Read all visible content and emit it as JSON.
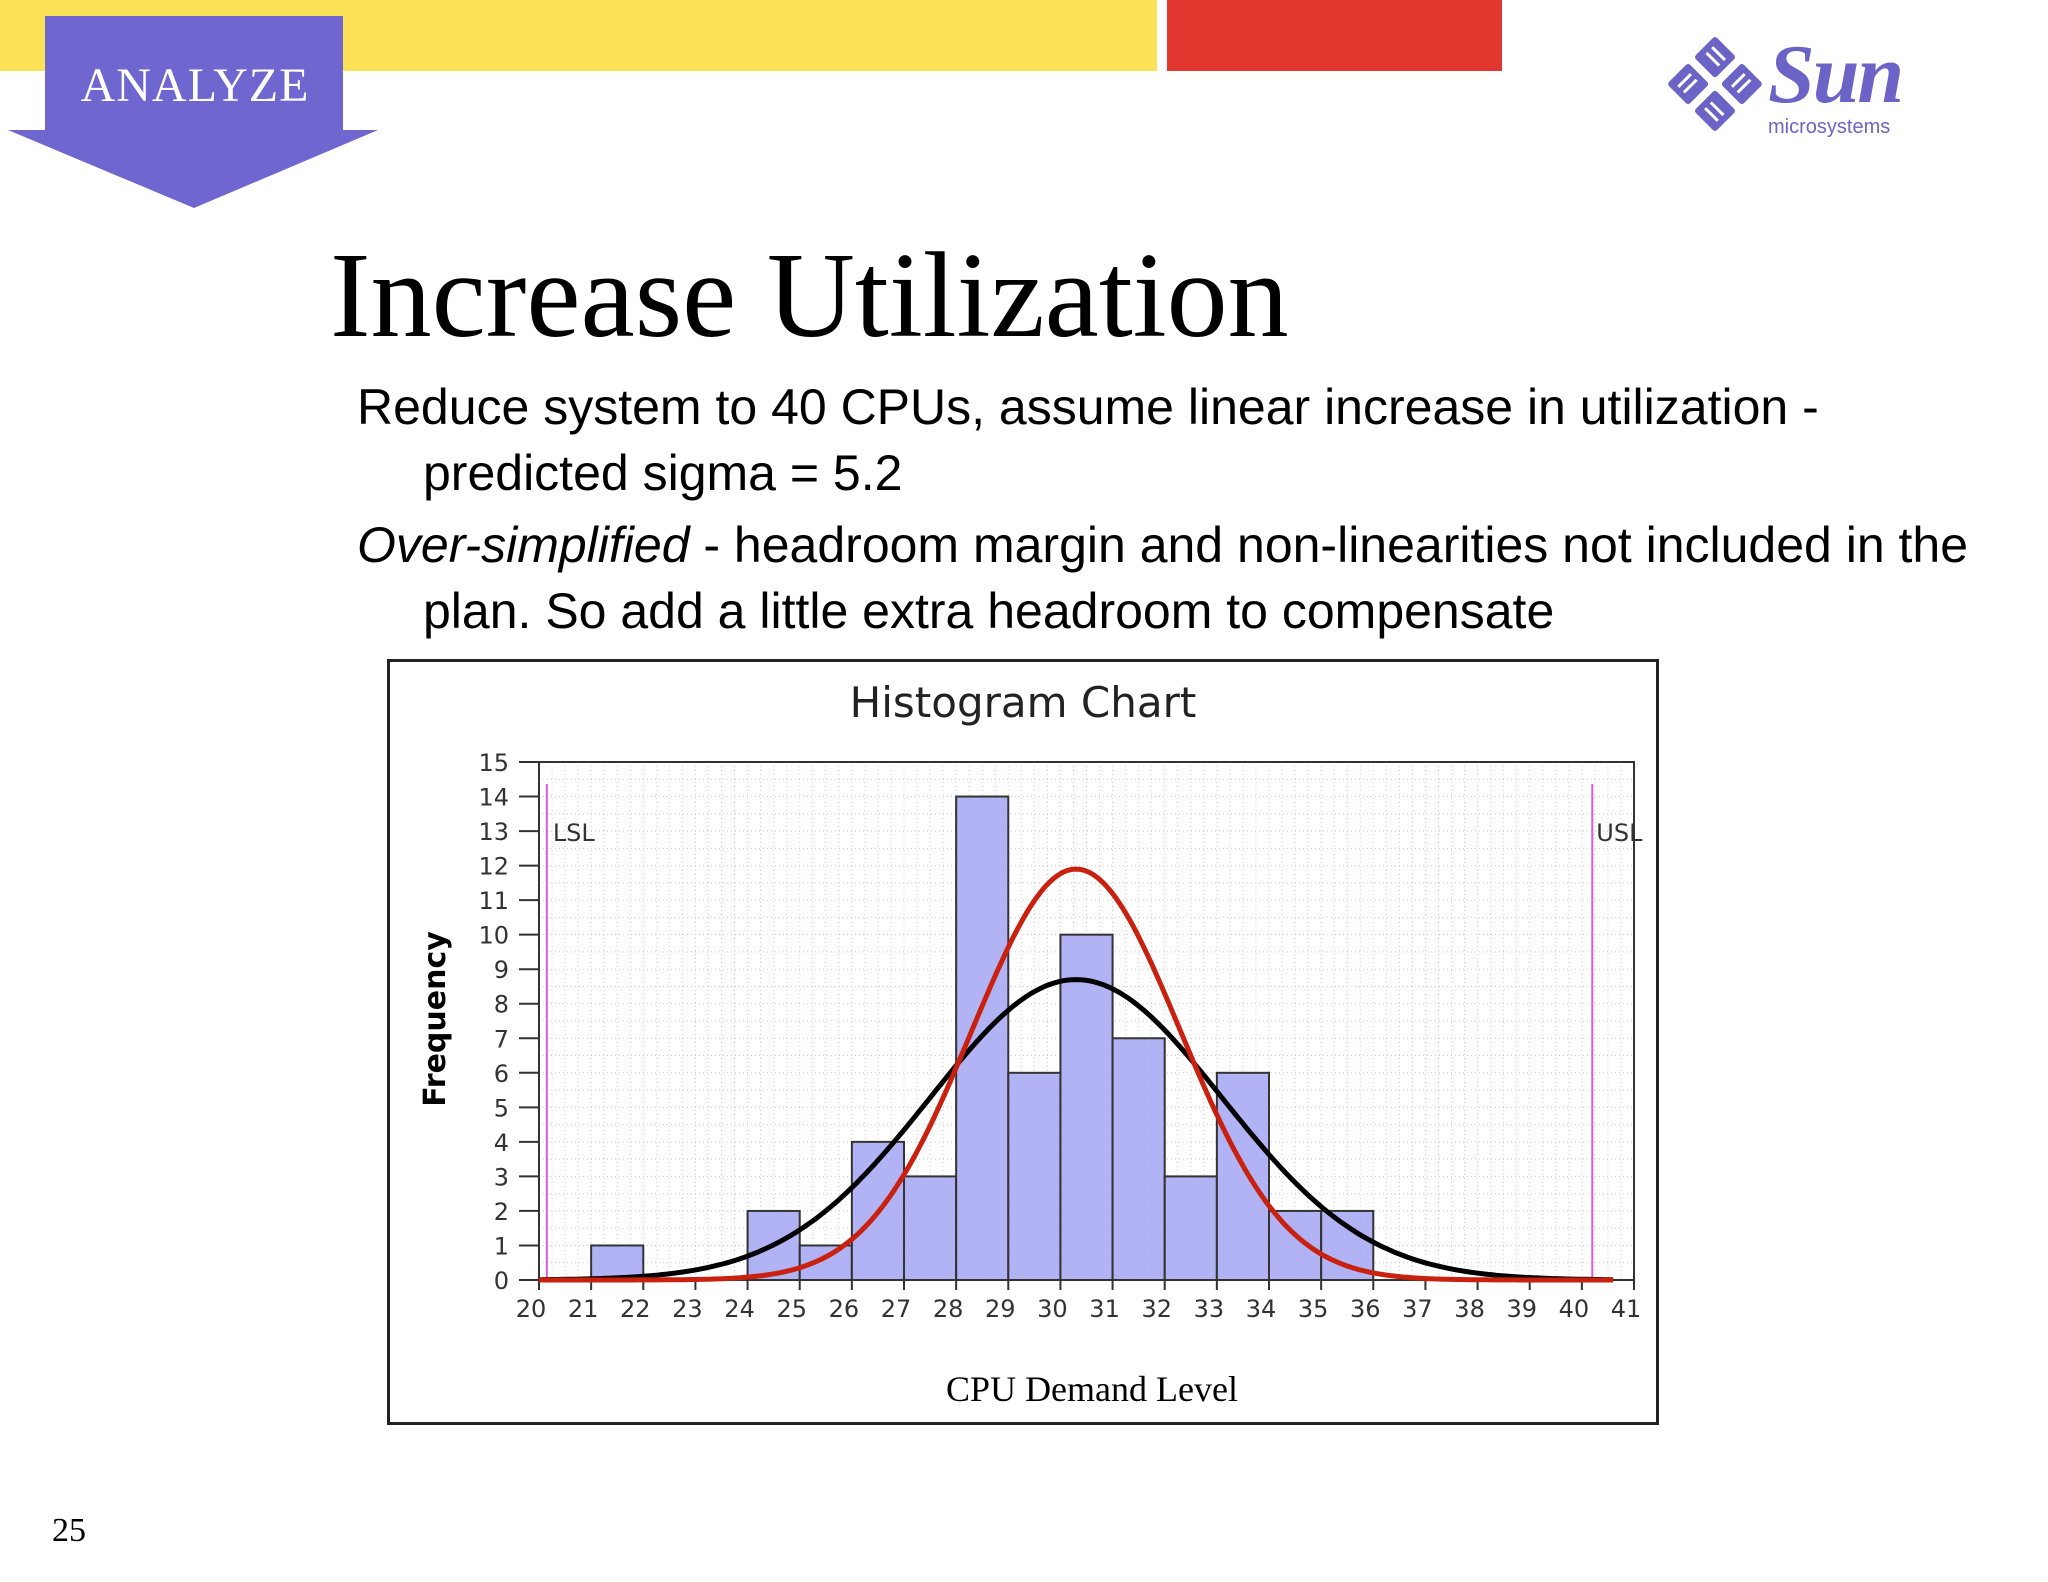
{
  "slide": {
    "section_badge": "ANALYZE",
    "logo": {
      "word": "Sun",
      "sub": "microsystems",
      "color": "#6b64c6"
    },
    "title": "Increase Utilization",
    "bullets": [
      {
        "lead": "",
        "text": "Reduce system to 40 CPUs, assume linear increase in utilization - predicted sigma = 5.2"
      },
      {
        "lead": "Over-simplified",
        "text": " - headroom margin and non-linearities not included in the plan. So add a little extra headroom to compensate"
      }
    ],
    "slide_number": "25",
    "colors": {
      "yellow": "#fce257",
      "red": "#e2372f",
      "badge": "#6f67cf"
    }
  },
  "chart_data": {
    "type": "bar",
    "title": "Histogram Chart",
    "xlabel": "CPU Demand Level",
    "ylabel": "Frequency",
    "xlim": [
      20,
      41
    ],
    "ylim": [
      0,
      15
    ],
    "x_ticks": [
      20,
      21,
      22,
      23,
      24,
      25,
      26,
      27,
      28,
      29,
      30,
      31,
      32,
      33,
      34,
      35,
      36,
      37,
      38,
      39,
      40,
      41
    ],
    "y_ticks": [
      0,
      1,
      2,
      3,
      4,
      5,
      6,
      7,
      8,
      9,
      10,
      11,
      12,
      13,
      14,
      15
    ],
    "bins": [
      {
        "start": 21,
        "end": 22,
        "value": 1
      },
      {
        "start": 24,
        "end": 25,
        "value": 2
      },
      {
        "start": 25,
        "end": 26,
        "value": 1
      },
      {
        "start": 26,
        "end": 27,
        "value": 4
      },
      {
        "start": 27,
        "end": 28,
        "value": 3
      },
      {
        "start": 28,
        "end": 29,
        "value": 14
      },
      {
        "start": 29,
        "end": 30,
        "value": 6
      },
      {
        "start": 30,
        "end": 31,
        "value": 10
      },
      {
        "start": 31,
        "end": 32,
        "value": 7
      },
      {
        "start": 32,
        "end": 33,
        "value": 3
      },
      {
        "start": 33,
        "end": 34,
        "value": 6
      },
      {
        "start": 34,
        "end": 35,
        "value": 2
      },
      {
        "start": 35,
        "end": 36,
        "value": 2
      }
    ],
    "spec_limits": [
      {
        "label": "LSL",
        "x": 20.15
      },
      {
        "label": "USL",
        "x": 40.2
      }
    ],
    "curves": [
      {
        "color": "#000000",
        "mean": 30.3,
        "peak": 8.7,
        "sd": 2.8,
        "x_range": [
          20,
          40.6
        ]
      },
      {
        "color": "#c8210f",
        "mean": 30.3,
        "peak": 11.9,
        "sd": 2.0,
        "x_range": [
          20,
          40.6
        ]
      }
    ],
    "bar_color": "#a4a6f2",
    "grid": true,
    "legend": "none"
  }
}
